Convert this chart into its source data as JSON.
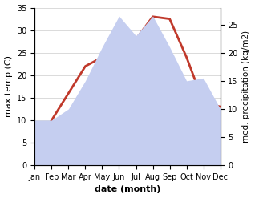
{
  "months": [
    "Jan",
    "Feb",
    "Mar",
    "Apr",
    "May",
    "Jun",
    "Jul",
    "Aug",
    "Sep",
    "Oct",
    "Nov",
    "Dec"
  ],
  "month_positions": [
    0,
    1,
    2,
    3,
    4,
    5,
    6,
    7,
    8,
    9,
    10,
    11
  ],
  "max_temp": [
    3.5,
    10.0,
    16.0,
    22.0,
    24.0,
    29.5,
    28.0,
    33.0,
    32.5,
    24.0,
    14.0,
    13.0
  ],
  "precipitation": [
    8.0,
    8.0,
    10.0,
    15.0,
    21.0,
    26.5,
    23.0,
    26.5,
    21.0,
    15.0,
    15.5,
    10.0
  ],
  "temp_color": "#c0392b",
  "precip_fill_color": "#c5cef0",
  "temp_ylim": [
    0,
    35
  ],
  "precip_ylim": [
    0,
    28
  ],
  "precip_scale_factor": 1.4,
  "temp_yticks": [
    0,
    5,
    10,
    15,
    20,
    25,
    30,
    35
  ],
  "precip_yticks": [
    0,
    5,
    10,
    15,
    20,
    25
  ],
  "xlabel": "date (month)",
  "ylabel_left": "max temp (C)",
  "ylabel_right": "med. precipitation (kg/m2)",
  "line_width": 2.0,
  "tick_fontsize": 7,
  "label_fontsize": 8
}
